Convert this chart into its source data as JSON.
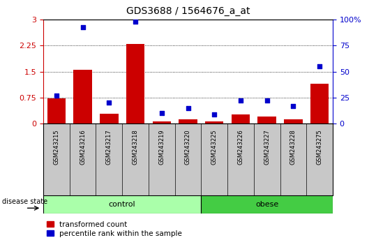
{
  "title": "GDS3688 / 1564676_a_at",
  "samples": [
    "GSM243215",
    "GSM243216",
    "GSM243217",
    "GSM243218",
    "GSM243219",
    "GSM243220",
    "GSM243225",
    "GSM243226",
    "GSM243227",
    "GSM243228",
    "GSM243275"
  ],
  "transformed_count": [
    0.72,
    1.55,
    0.28,
    2.3,
    0.07,
    0.12,
    0.07,
    0.27,
    0.2,
    0.13,
    1.15
  ],
  "percentile_rank": [
    27,
    93,
    20,
    98,
    10,
    15,
    9,
    22,
    22,
    17,
    55
  ],
  "control_samples": 6,
  "obese_samples": 5,
  "ylim_left": [
    0,
    3
  ],
  "ylim_right": [
    0,
    100
  ],
  "yticks_left": [
    0,
    0.75,
    1.5,
    2.25,
    3
  ],
  "ytick_labels_left": [
    "0",
    "0.75",
    "1.5",
    "2.25",
    "3"
  ],
  "yticks_right": [
    0,
    25,
    50,
    75,
    100
  ],
  "ytick_labels_right": [
    "0",
    "25",
    "50",
    "75",
    "100%"
  ],
  "bar_color": "#cc0000",
  "dot_color": "#0000cc",
  "control_color": "#aaffaa",
  "obese_color": "#44cc44",
  "label_color_left": "#cc0000",
  "label_color_right": "#0000cc",
  "disease_state_label": "disease state",
  "control_label": "control",
  "obese_label": "obese",
  "legend_red_label": "transformed count",
  "legend_blue_label": "percentile rank within the sample",
  "xlabel_area_color": "#c8c8c8",
  "bar_width": 0.7,
  "dot_size": 25,
  "figsize": [
    5.39,
    3.54
  ],
  "dpi": 100
}
